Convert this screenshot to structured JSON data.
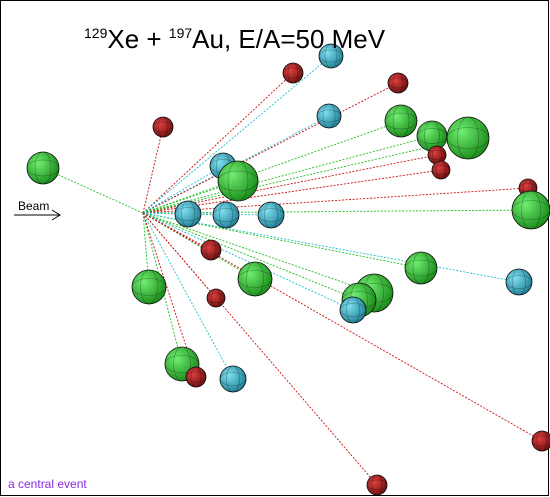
{
  "title": {
    "mass_a": "129",
    "nucleus_a": "Xe + ",
    "mass_b": "197",
    "rest": "Au, E/A=50 MeV"
  },
  "beam_label": "Beam",
  "caption": "a central event"
}
